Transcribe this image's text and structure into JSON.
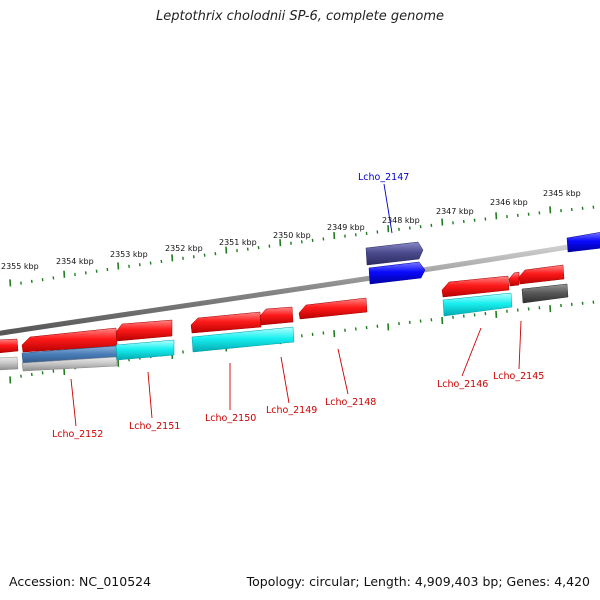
{
  "title": "Leptothrix cholodnii SP-6, complete genome",
  "footer": {
    "accession": "Accession: NC_010524",
    "summary": "Topology: circular; Length: 4,909,403 bp; Genes: 4,420"
  },
  "colors": {
    "backbone": "#8a8a8a",
    "tick": "#1e7d1e",
    "gene_label_red": "#cc0000",
    "gene_label_blue": "#0000cc",
    "forward_cds": "#e60000",
    "forward_rna_like": "#4a4a8c",
    "forward_blue": "#0000e6",
    "reverse_cyan": "#00e6e6",
    "reverse_gray": "#555555",
    "reverse_steel": "#4a7db8",
    "reverse_light": "#bdbdbd"
  },
  "scale_labels": [
    {
      "label": "2355 kbp",
      "kbp": 2355
    },
    {
      "label": "2354 kbp",
      "kbp": 2354
    },
    {
      "label": "2353 kbp",
      "kbp": 2353
    },
    {
      "label": "2352 kbp",
      "kbp": 2352
    },
    {
      "label": "2351 kbp",
      "kbp": 2351
    },
    {
      "label": "2350 kbp",
      "kbp": 2350
    },
    {
      "label": "2349 kbp",
      "kbp": 2349
    },
    {
      "label": "2348 kbp",
      "kbp": 2348
    },
    {
      "label": "2347 kbp",
      "kbp": 2347
    },
    {
      "label": "2346 kbp",
      "kbp": 2346
    },
    {
      "label": "2345 kbp",
      "kbp": 2345
    }
  ],
  "gene_labels": [
    {
      "label": "Lcho_2147",
      "color": "blue"
    },
    {
      "label": "Lcho_2152",
      "color": "red"
    },
    {
      "label": "Lcho_2151",
      "color": "red"
    },
    {
      "label": "Lcho_2150",
      "color": "red"
    },
    {
      "label": "Lcho_2149",
      "color": "red"
    },
    {
      "label": "Lcho_2148",
      "color": "red"
    },
    {
      "label": "Lcho_2146",
      "color": "red"
    },
    {
      "label": "Lcho_2145",
      "color": "red"
    }
  ]
}
